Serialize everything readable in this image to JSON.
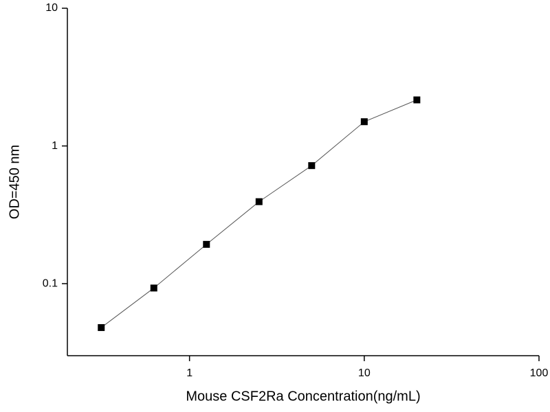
{
  "chart_data": {
    "type": "line",
    "x_label": "Mouse CSF2Ra Concentration(ng/mL)",
    "y_label": "OD=450 nm",
    "x": [
      0.3125,
      0.625,
      1.25,
      2.5,
      5,
      10,
      20
    ],
    "series": [
      {
        "color": "#000000",
        "line_color": "#555555",
        "values": [
          0.048,
          0.093,
          0.193,
          0.394,
          0.72,
          1.5,
          2.16
        ]
      }
    ],
    "xscale": "log",
    "yscale": "log",
    "xlim": [
      0.2,
      100
    ],
    "ylim": [
      0.03,
      10
    ],
    "xticks": [
      1,
      10,
      100
    ],
    "yticks": [
      0.1,
      1,
      10
    ],
    "grid": false
  }
}
